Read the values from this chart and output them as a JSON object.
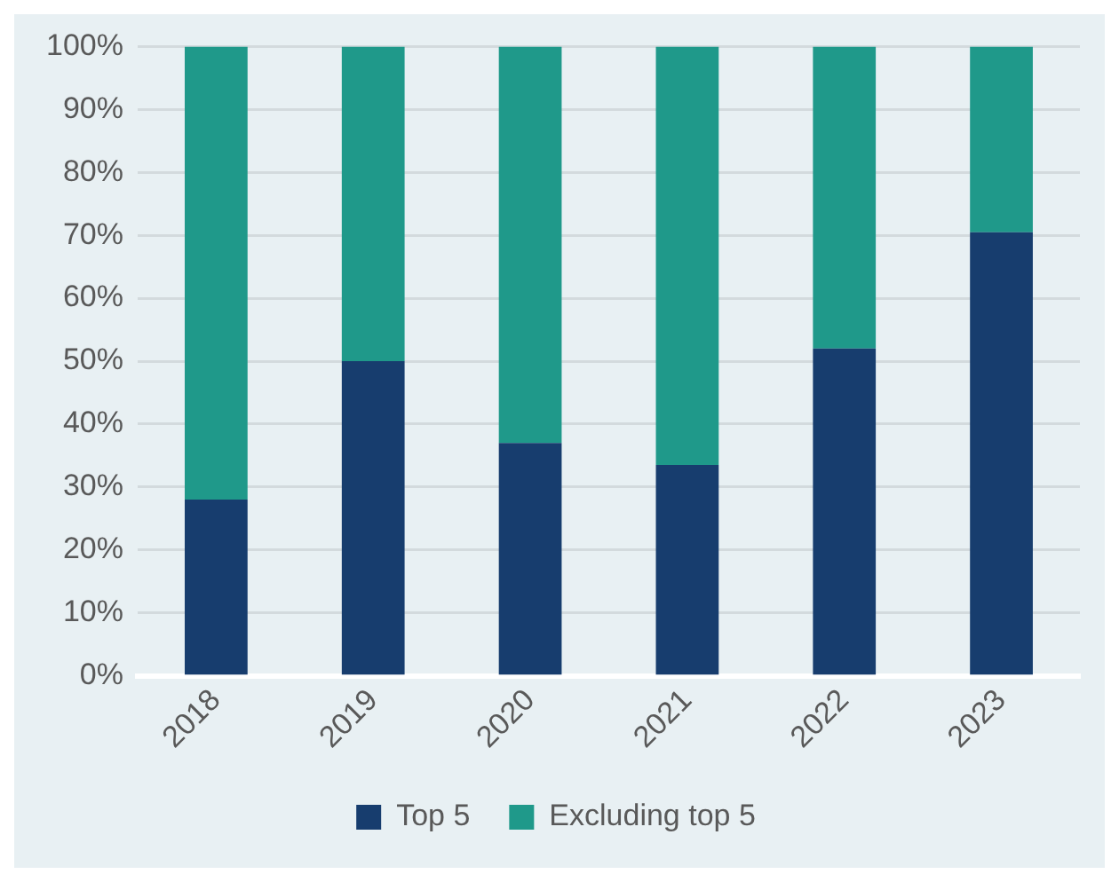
{
  "chart_data": {
    "type": "bar",
    "stacked": true,
    "categories": [
      "2018",
      "2019",
      "2020",
      "2021",
      "2022",
      "2023"
    ],
    "series": [
      {
        "name": "Top 5",
        "color": "#173d6e",
        "values": [
          28,
          50,
          37,
          33.5,
          52,
          70.5
        ]
      },
      {
        "name": "Excluding top 5",
        "color": "#1f998a",
        "values": [
          72,
          50,
          63,
          66.5,
          48,
          29.5
        ]
      }
    ],
    "ylim": [
      0,
      100
    ],
    "yticks": [
      {
        "value": 0,
        "label": "0%"
      },
      {
        "value": 10,
        "label": "10%"
      },
      {
        "value": 20,
        "label": "20%"
      },
      {
        "value": 30,
        "label": "30%"
      },
      {
        "value": 40,
        "label": "40%"
      },
      {
        "value": 50,
        "label": "50%"
      },
      {
        "value": 60,
        "label": "60%"
      },
      {
        "value": 70,
        "label": "70%"
      },
      {
        "value": 80,
        "label": "80%"
      },
      {
        "value": 90,
        "label": "90%"
      },
      {
        "value": 100,
        "label": "100%"
      }
    ],
    "grid": "y",
    "legend": "bottom"
  }
}
